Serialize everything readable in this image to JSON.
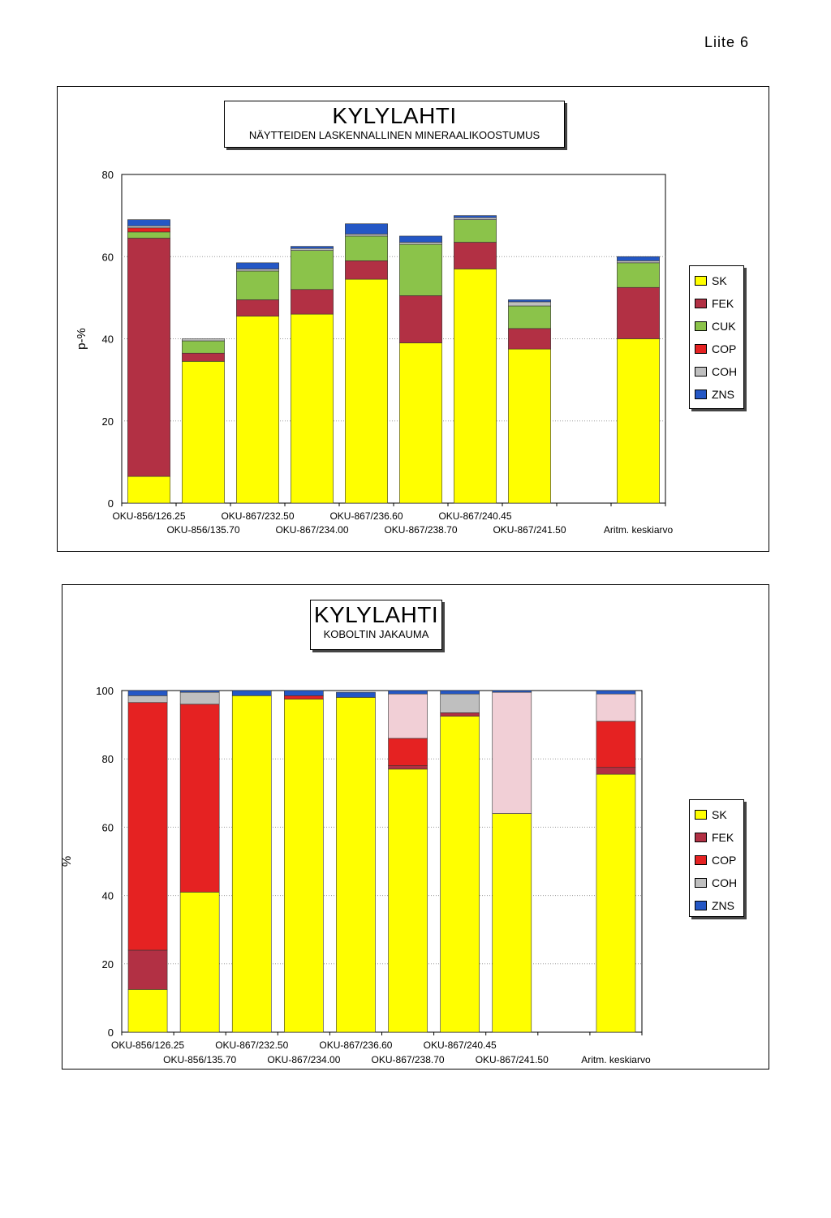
{
  "page_label": "Liite 6",
  "colors": {
    "SK": "#ffff00",
    "FEK": "#b23044",
    "CUK": "#8bc34a",
    "COP": "#e52222",
    "COH": "#bfbfbf",
    "ZNS": "#2457c5",
    "COH_light": "#f1cfd6"
  },
  "chart_data": [
    {
      "type": "bar",
      "stacked": true,
      "title": "KYLYLAHTI",
      "subtitle": "NÄYTTEIDEN LASKENNALLINEN MINERAALIKOOSTUMUS",
      "ylabel": "p-%",
      "ylim": [
        0,
        80
      ],
      "yticks": [
        0,
        20,
        40,
        60,
        80
      ],
      "grid": true,
      "legend_position": "right",
      "categories": [
        "OKU-856/126.25",
        "OKU-856/135.70",
        "OKU-867/232.50",
        "OKU-867/234.00",
        "OKU-867/236.60",
        "OKU-867/238.70",
        "OKU-867/240.45",
        "OKU-867/241.50",
        "",
        "Aritm. keskiarvo"
      ],
      "series": [
        {
          "name": "SK",
          "values": [
            6.5,
            34.5,
            45.5,
            46,
            54.5,
            39,
            57,
            37.5,
            null,
            40
          ]
        },
        {
          "name": "FEK",
          "values": [
            58,
            2,
            4,
            6,
            4.5,
            11.5,
            6.5,
            5,
            null,
            12.5
          ]
        },
        {
          "name": "CUK",
          "values": [
            1.5,
            3,
            7,
            9.5,
            6,
            12.5,
            5.5,
            5.5,
            null,
            6
          ]
        },
        {
          "name": "COP",
          "values": [
            1,
            0,
            0,
            0,
            0,
            0,
            0,
            0,
            null,
            0
          ]
        },
        {
          "name": "COH",
          "values": [
            0.5,
            0.5,
            0.5,
            0.5,
            0.5,
            0.5,
            0.5,
            1,
            null,
            0.5
          ]
        },
        {
          "name": "ZNS",
          "values": [
            1.5,
            0,
            1.5,
            0.5,
            2.5,
            1.5,
            0.5,
            0.5,
            null,
            1
          ]
        }
      ]
    },
    {
      "type": "bar",
      "stacked": true,
      "title": "KYLYLAHTI",
      "subtitle": "KOBOLTIN JAKAUMA",
      "ylabel": "%",
      "ylim": [
        0,
        100
      ],
      "yticks": [
        0,
        20,
        40,
        60,
        80,
        100
      ],
      "grid": true,
      "legend_position": "right",
      "categories": [
        "OKU-856/126.25",
        "OKU-856/135.70",
        "OKU-867/232.50",
        "OKU-867/234.00",
        "OKU-867/236.60",
        "OKU-867/238.70",
        "OKU-867/240.45",
        "OKU-867/241.50",
        "",
        "Aritm. keskiarvo"
      ],
      "series": [
        {
          "name": "SK",
          "values": [
            12.5,
            41,
            98.5,
            97.5,
            98,
            77,
            92.5,
            64,
            null,
            75.5
          ]
        },
        {
          "name": "FEK",
          "values": [
            11.5,
            0,
            0,
            0,
            0,
            1,
            1,
            0,
            null,
            2
          ]
        },
        {
          "name": "COP",
          "values": [
            72.5,
            55,
            0,
            1,
            0,
            8,
            0,
            0,
            null,
            13.5
          ]
        },
        {
          "name": "COH",
          "values": [
            2,
            3.5,
            0,
            0,
            0,
            13,
            5.5,
            35.5,
            null,
            8
          ]
        },
        {
          "name": "ZNS",
          "values": [
            1.5,
            0.5,
            1.5,
            1.5,
            1.5,
            1,
            1,
            0.5,
            null,
            1
          ]
        }
      ]
    }
  ]
}
